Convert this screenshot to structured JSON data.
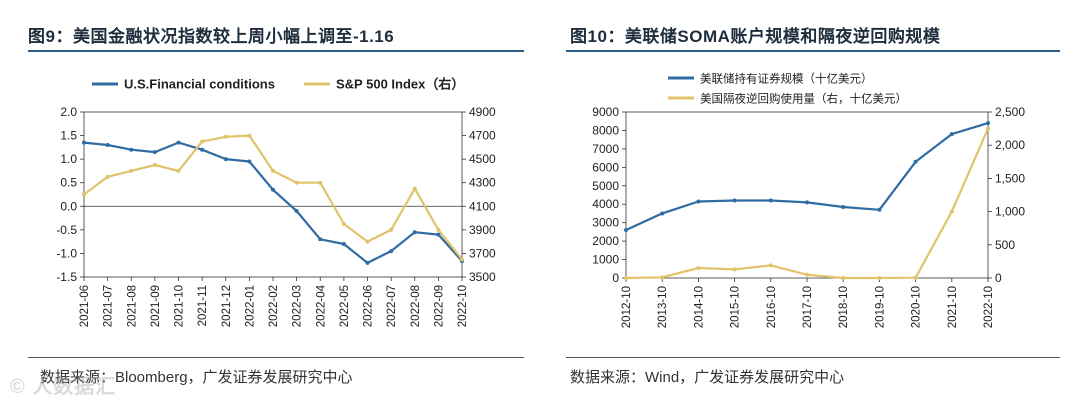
{
  "left": {
    "title": "图9：美国金融状况指数较上周小幅上调至-1.16",
    "source": "数据来源：Bloomberg，广发证券发展研究中心"
  },
  "right": {
    "title": "图10：美联储SOMA账户规模和隔夜逆回购规模",
    "source": "数据来源：Wind，广发证券发展研究中心"
  },
  "watermark": "© 人数据汇",
  "chart_data": [
    {
      "type": "line",
      "title": "图9：美国金融状况指数较上周小幅上调至-1.16",
      "grid": false,
      "legend_position": "top-left",
      "x_ticks": [
        "2021-06",
        "2021-07",
        "2021-08",
        "2021-09",
        "2021-10",
        "2021-11",
        "2021-12",
        "2022-01",
        "2022-02",
        "2022-03",
        "2022-04",
        "2022-05",
        "2022-06",
        "2022-07",
        "2022-08",
        "2022-09",
        "2022-10"
      ],
      "x": [
        "2021-06",
        "2021-07",
        "2021-08",
        "2021-09",
        "2021-10",
        "2021-11",
        "2021-12",
        "2022-01",
        "2022-02",
        "2022-03",
        "2022-04",
        "2022-05",
        "2022-06",
        "2022-07",
        "2022-08",
        "2022-09",
        "2022-10"
      ],
      "y_left": {
        "ylim": [
          -1.5,
          2.0
        ],
        "ticks": [
          "2.0",
          "1.5",
          "1.0",
          "0.5",
          "0.0",
          "-0.5",
          "-1.0",
          "-1.5"
        ]
      },
      "y_right": {
        "ylim": [
          3500,
          4900
        ],
        "ticks": [
          "4900",
          "4700",
          "4500",
          "4300",
          "4100",
          "3900",
          "3700",
          "3500"
        ]
      },
      "series": [
        {
          "name": "U.S.Financial conditions",
          "axis": "left",
          "color": "#2f6ca3",
          "values": [
            1.35,
            1.3,
            1.2,
            1.15,
            1.35,
            1.2,
            1.0,
            0.95,
            0.35,
            -0.1,
            -0.7,
            -0.8,
            -1.2,
            -0.95,
            -0.55,
            -0.6,
            -1.16
          ]
        },
        {
          "name": "S&P 500 Index（右）",
          "axis": "right",
          "color": "#e0c36b",
          "values": [
            4200,
            4350,
            4400,
            4450,
            4400,
            4650,
            4690,
            4700,
            4400,
            4300,
            4300,
            3950,
            3800,
            3900,
            4250,
            3900,
            3650
          ]
        }
      ]
    },
    {
      "type": "line",
      "title": "图10：美联储SOMA账户规模和隔夜逆回购规模",
      "grid": false,
      "legend_position": "top-left",
      "x_ticks": [
        "2012-10",
        "2013-10",
        "2014-10",
        "2015-10",
        "2016-10",
        "2017-10",
        "2018-10",
        "2019-10",
        "2020-10",
        "2021-10",
        "2022-10"
      ],
      "x": [
        "2012-10",
        "2013-10",
        "2014-10",
        "2015-10",
        "2016-10",
        "2017-10",
        "2018-10",
        "2019-10",
        "2020-10",
        "2021-10",
        "2022-10"
      ],
      "y_left": {
        "ylim": [
          0,
          9000
        ],
        "ticks": [
          "9000",
          "8000",
          "7000",
          "6000",
          "5000",
          "4000",
          "3000",
          "2000",
          "1000",
          "0"
        ]
      },
      "y_right": {
        "ylim": [
          0,
          2500
        ],
        "ticks": [
          "2,500",
          "2,000",
          "1,500",
          "1,000",
          "500",
          "0"
        ]
      },
      "series": [
        {
          "name": "美联储持有证券规模（十亿美元）",
          "axis": "left",
          "color": "#2f6ca3",
          "values": [
            2600,
            3500,
            4150,
            4200,
            4200,
            4100,
            3850,
            3700,
            6300,
            7800,
            8400
          ]
        },
        {
          "name": "美国隔夜逆回购使用量（右，十亿美元）",
          "axis": "right",
          "color": "#e0c36b",
          "values": [
            0,
            10,
            150,
            130,
            190,
            50,
            0,
            0,
            5,
            1000,
            2250
          ]
        }
      ]
    }
  ]
}
